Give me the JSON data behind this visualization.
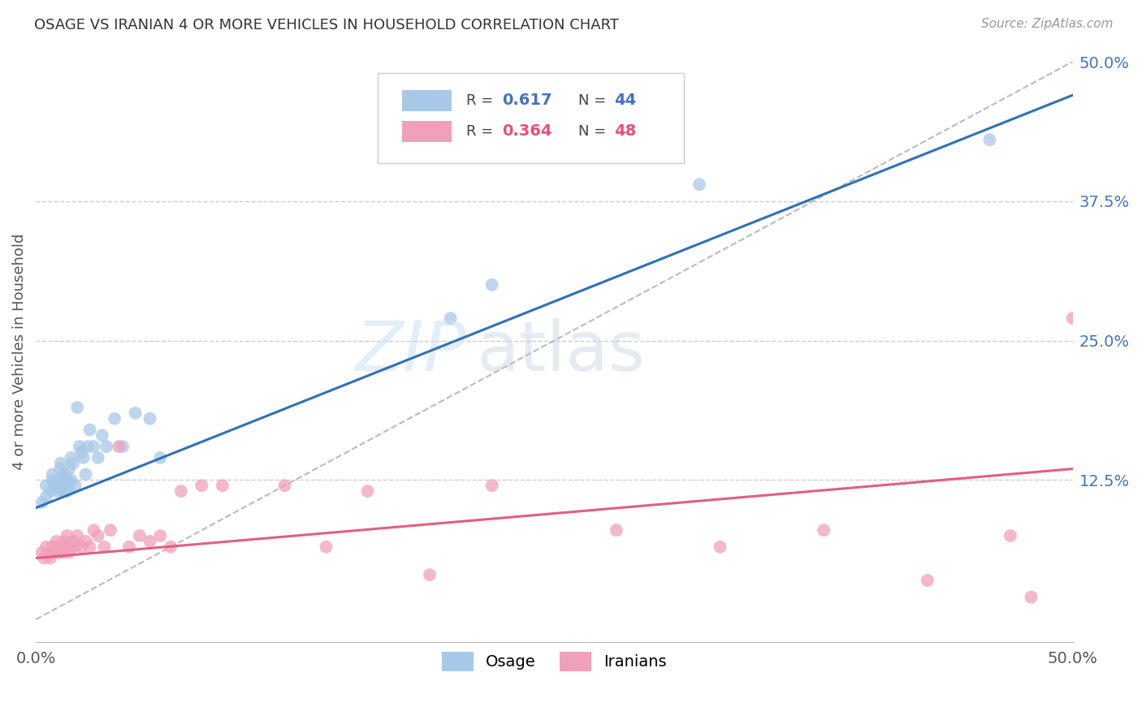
{
  "title": "OSAGE VS IRANIAN 4 OR MORE VEHICLES IN HOUSEHOLD CORRELATION CHART",
  "source_text": "Source: ZipAtlas.com",
  "ylabel": "4 or more Vehicles in Household",
  "xlim": [
    0.0,
    0.5
  ],
  "ylim": [
    -0.02,
    0.5
  ],
  "blue_color": "#a8c8e8",
  "pink_color": "#f0a0b8",
  "blue_line_color": "#3070b8",
  "pink_line_color": "#e06080",
  "grid_color": "#cccccc",
  "background_color": "#ffffff",
  "osage_x": [
    0.003,
    0.005,
    0.005,
    0.007,
    0.008,
    0.008,
    0.009,
    0.01,
    0.01,
    0.011,
    0.012,
    0.012,
    0.013,
    0.013,
    0.014,
    0.014,
    0.015,
    0.015,
    0.016,
    0.016,
    0.017,
    0.017,
    0.018,
    0.019,
    0.02,
    0.021,
    0.022,
    0.023,
    0.024,
    0.025,
    0.026,
    0.028,
    0.03,
    0.032,
    0.034,
    0.038,
    0.042,
    0.048,
    0.055,
    0.06,
    0.2,
    0.22,
    0.32,
    0.46
  ],
  "osage_y": [
    0.105,
    0.11,
    0.12,
    0.115,
    0.125,
    0.13,
    0.12,
    0.115,
    0.125,
    0.12,
    0.135,
    0.14,
    0.115,
    0.125,
    0.12,
    0.13,
    0.115,
    0.125,
    0.12,
    0.135,
    0.145,
    0.125,
    0.14,
    0.12,
    0.19,
    0.155,
    0.15,
    0.145,
    0.13,
    0.155,
    0.17,
    0.155,
    0.145,
    0.165,
    0.155,
    0.18,
    0.155,
    0.185,
    0.18,
    0.145,
    0.27,
    0.3,
    0.39,
    0.43
  ],
  "iranian_x": [
    0.003,
    0.004,
    0.005,
    0.006,
    0.007,
    0.008,
    0.009,
    0.01,
    0.01,
    0.011,
    0.012,
    0.013,
    0.014,
    0.015,
    0.015,
    0.016,
    0.017,
    0.018,
    0.019,
    0.02,
    0.022,
    0.024,
    0.026,
    0.028,
    0.03,
    0.033,
    0.036,
    0.04,
    0.045,
    0.05,
    0.055,
    0.06,
    0.065,
    0.07,
    0.08,
    0.09,
    0.12,
    0.14,
    0.16,
    0.19,
    0.22,
    0.28,
    0.33,
    0.38,
    0.43,
    0.47,
    0.48,
    0.5
  ],
  "iranian_y": [
    0.06,
    0.055,
    0.065,
    0.06,
    0.055,
    0.065,
    0.06,
    0.065,
    0.07,
    0.06,
    0.065,
    0.06,
    0.07,
    0.065,
    0.075,
    0.06,
    0.065,
    0.07,
    0.065,
    0.075,
    0.065,
    0.07,
    0.065,
    0.08,
    0.075,
    0.065,
    0.08,
    0.155,
    0.065,
    0.075,
    0.07,
    0.075,
    0.065,
    0.115,
    0.12,
    0.12,
    0.12,
    0.065,
    0.115,
    0.04,
    0.12,
    0.08,
    0.065,
    0.08,
    0.035,
    0.075,
    0.02,
    0.27
  ],
  "blue_line_x0": 0.0,
  "blue_line_y0": 0.1,
  "blue_line_x1": 0.5,
  "blue_line_y1": 0.47,
  "pink_line_x0": 0.0,
  "pink_line_y0": 0.055,
  "pink_line_x1": 0.5,
  "pink_line_y1": 0.135
}
